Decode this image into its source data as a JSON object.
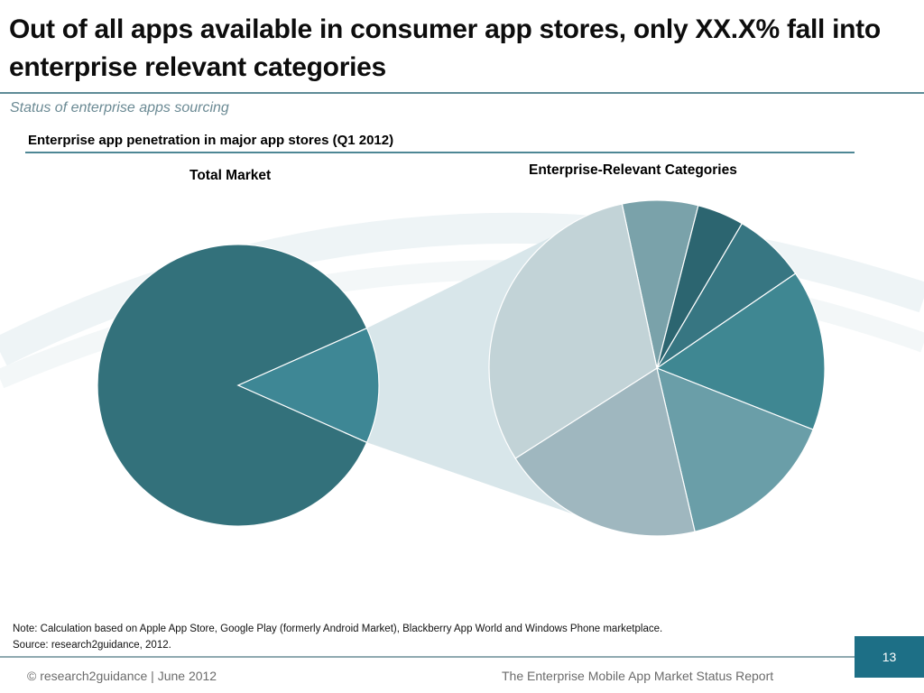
{
  "slide": {
    "title": "Out of all apps available in consumer app stores, only XX.X% fall into enterprise relevant categories",
    "subtitle": "Status of enterprise apps sourcing",
    "chart_heading": "Enterprise app penetration in major app stores (Q1 2012)",
    "note_line1": "Note: Calculation based on Apple App Store, Google Play (formerly Android Market), Blackberry App World and Windows Phone marketplace.",
    "note_line2": "Source: research2guidance, 2012.",
    "footer_left": "© research2guidance | June 2012",
    "footer_right": "The Enterprise Mobile App Market Status Report",
    "page_number": "13"
  },
  "colors": {
    "primary_dark": "#33717b",
    "highlight": "#3e8795",
    "connector": "#d8e6ea",
    "rule": "#4e8795",
    "page_box": "#1d6f86"
  },
  "chart_data": [
    {
      "type": "pie",
      "title": "Total Market",
      "series": [
        {
          "name": "",
          "value": 86.7,
          "color": "#33717b"
        },
        {
          "name": "",
          "value": 13.3,
          "color": "#3e8795",
          "exploded_to": "Enterprise-Relevant Categories"
        }
      ]
    },
    {
      "type": "pie",
      "title": "Enterprise-Relevant Categories",
      "series": [
        {
          "name": "",
          "value": 7.3,
          "color": "#7aa2aa"
        },
        {
          "name": "",
          "value": 4.5,
          "color": "#2c6570"
        },
        {
          "name": "",
          "value": 7.0,
          "color": "#377682"
        },
        {
          "name": "",
          "value": 15.5,
          "color": "#3f8792"
        },
        {
          "name": "",
          "value": 15.4,
          "color": "#6a9ea8"
        },
        {
          "name": "",
          "value": 19.6,
          "color": "#9fb7bf"
        },
        {
          "name": "",
          "value": 30.7,
          "color": "#c2d3d7"
        }
      ]
    }
  ]
}
